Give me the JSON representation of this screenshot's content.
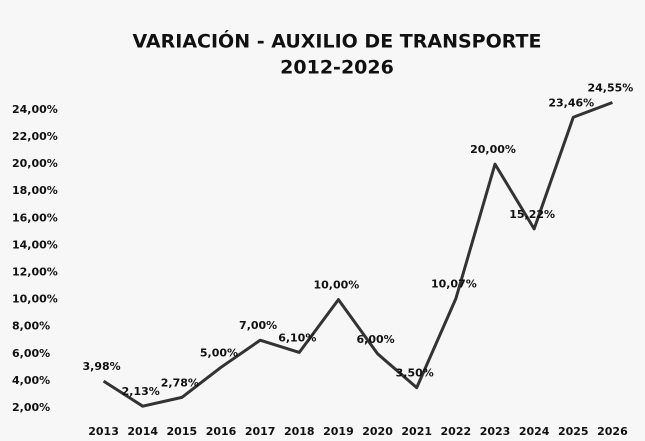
{
  "chart_data": {
    "type": "line",
    "title": "VARIACIÓN - AUXILIO DE TRANSPORTE",
    "subtitle": "2012-2026",
    "categories": [
      "2013",
      "2014",
      "2015",
      "2016",
      "2017",
      "2018",
      "2019",
      "2020",
      "2021",
      "2022",
      "2023",
      "2024",
      "2025",
      "2026"
    ],
    "values": [
      3.98,
      2.13,
      2.78,
      5.0,
      7.0,
      6.1,
      10.0,
      6.0,
      3.5,
      10.07,
      20.0,
      15.22,
      23.46,
      24.55
    ],
    "value_labels": [
      "3,98%",
      "2,13%",
      "2,78%",
      "5,00%",
      "7,00%",
      "6,10%",
      "10,00%",
      "6,00%",
      "3,50%",
      "10,07%",
      "20,00%",
      "15,22%",
      "23,46%",
      "24,55%"
    ],
    "color": "#333333",
    "ylim": [
      1,
      25
    ],
    "yticks": [
      {
        "value": 2,
        "label": "2,00%"
      },
      {
        "value": 4,
        "label": "4,00%"
      },
      {
        "value": 6,
        "label": "6,00%"
      },
      {
        "value": 8,
        "label": "8,00%"
      },
      {
        "value": 10,
        "label": "10,00%"
      },
      {
        "value": 12,
        "label": "12,00%"
      },
      {
        "value": 14,
        "label": "14,00%"
      },
      {
        "value": 16,
        "label": "16,00%"
      },
      {
        "value": 18,
        "label": "18,00%"
      },
      {
        "value": 20,
        "label": "20,00%"
      },
      {
        "value": 22,
        "label": "22,00%"
      },
      {
        "value": 24,
        "label": "24,00%"
      }
    ],
    "grid": false
  }
}
